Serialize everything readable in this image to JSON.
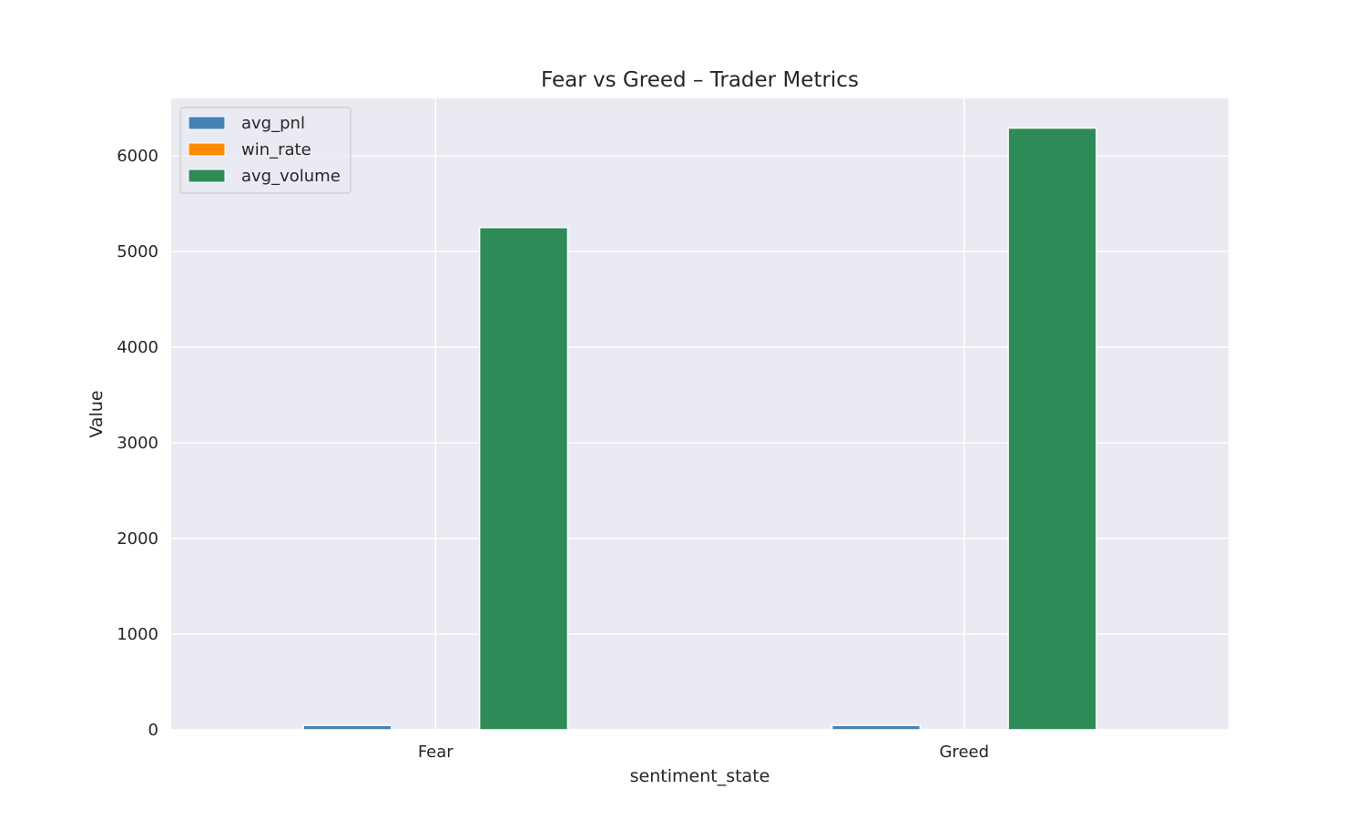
{
  "chart_data": {
    "type": "bar",
    "title": "Fear vs Greed – Trader Metrics",
    "xlabel": "sentiment_state",
    "ylabel": "Value",
    "categories": [
      "Fear",
      "Greed"
    ],
    "series": [
      {
        "name": "avg_pnl",
        "values": [
          45,
          45
        ],
        "color": "#4682b4"
      },
      {
        "name": "win_rate",
        "values": [
          0.4,
          0.4
        ],
        "color": "#ff8c00"
      },
      {
        "name": "avg_volume",
        "values": [
          5250,
          6290
        ],
        "color": "#2e8b57"
      }
    ],
    "ylim": [
      0,
      6600
    ],
    "yticks": [
      0,
      1000,
      2000,
      3000,
      4000,
      5000,
      6000
    ],
    "grid": true,
    "legend_position": "top-left",
    "colors": {
      "plot_background": "#eaeaf2",
      "grid": "#ffffff",
      "text": "#262626"
    }
  }
}
